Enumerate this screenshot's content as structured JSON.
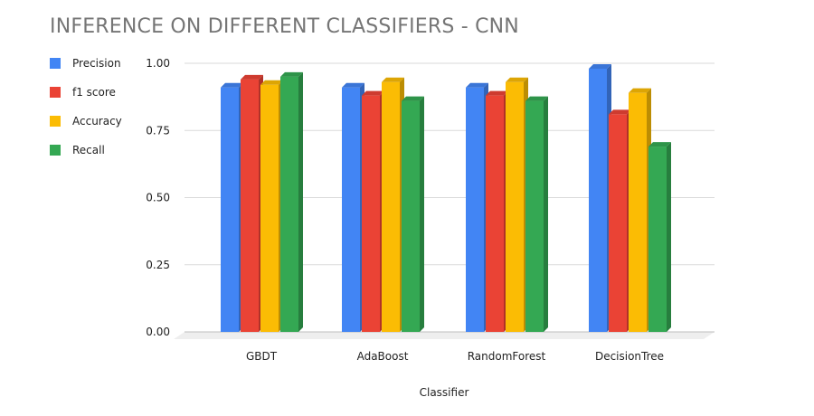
{
  "chart_data": {
    "type": "bar",
    "title": "INFERENCE ON DIFFERENT CLASSIFIERS - CNN",
    "xlabel": "Classifier",
    "ylabel": "",
    "categories": [
      "GBDT",
      "AdaBoost",
      "RandomForest",
      "DecisionTree"
    ],
    "series": [
      {
        "name": "Precision",
        "color": "#4285F4",
        "values": [
          0.91,
          0.91,
          0.91,
          0.98
        ]
      },
      {
        "name": "f1 score",
        "color": "#EA4335",
        "values": [
          0.94,
          0.88,
          0.88,
          0.81
        ]
      },
      {
        "name": "Accuracy",
        "color": "#FBBC04",
        "values": [
          0.92,
          0.93,
          0.93,
          0.89
        ]
      },
      {
        "name": "Recall",
        "color": "#34A853",
        "values": [
          0.95,
          0.86,
          0.86,
          0.69
        ]
      }
    ],
    "yticks": [
      "0.00",
      "0.25",
      "0.50",
      "0.75",
      "1.00"
    ],
    "ylim": [
      0,
      1
    ],
    "grid": true,
    "legend_position": "left",
    "style": "3d"
  }
}
